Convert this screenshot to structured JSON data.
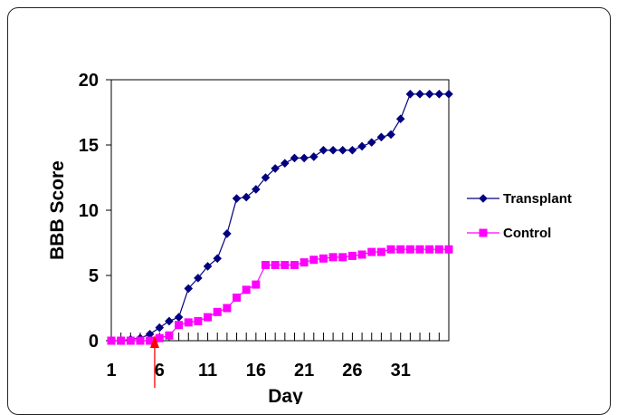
{
  "chart_data": {
    "type": "line",
    "title": "",
    "xlabel": "Day",
    "ylabel": "BBB Score",
    "xlim": [
      1,
      36
    ],
    "ylim": [
      0,
      20
    ],
    "x_ticks": [
      "1",
      "6",
      "11",
      "16",
      "21",
      "26",
      "31"
    ],
    "y_ticks": [
      "0",
      "5",
      "10",
      "15",
      "20"
    ],
    "legend": "right",
    "grid": false,
    "annotation": {
      "type": "arrow",
      "x": 5.5,
      "color": "#ff0000"
    },
    "x": [
      1,
      2,
      3,
      4,
      5,
      6,
      7,
      8,
      9,
      10,
      11,
      12,
      13,
      14,
      15,
      16,
      17,
      18,
      19,
      20,
      21,
      22,
      23,
      24,
      25,
      26,
      27,
      28,
      29,
      30,
      31,
      32,
      33,
      34,
      35,
      36
    ],
    "series": [
      {
        "name": "Transplant",
        "color": "#000080",
        "marker": "diamond",
        "values": [
          0,
          0,
          0.1,
          0.2,
          0.5,
          1,
          1.5,
          1.8,
          4,
          4.8,
          5.7,
          6.3,
          8.2,
          10.9,
          11,
          11.6,
          12.5,
          13.2,
          13.6,
          14,
          14,
          14.1,
          14.6,
          14.6,
          14.6,
          14.6,
          14.9,
          15.2,
          15.6,
          15.8,
          17,
          18.9,
          18.9,
          18.9,
          18.9,
          18.9
        ]
      },
      {
        "name": "Control",
        "color": "#ff00ff",
        "marker": "square",
        "values": [
          0,
          0,
          0,
          0,
          0,
          0.2,
          0.4,
          1.2,
          1.4,
          1.5,
          1.8,
          2.2,
          2.5,
          3.3,
          3.9,
          4.3,
          5.8,
          5.8,
          5.8,
          5.8,
          6,
          6.2,
          6.3,
          6.4,
          6.4,
          6.5,
          6.6,
          6.8,
          6.8,
          7,
          7,
          7,
          7,
          7,
          7,
          7
        ]
      }
    ]
  }
}
